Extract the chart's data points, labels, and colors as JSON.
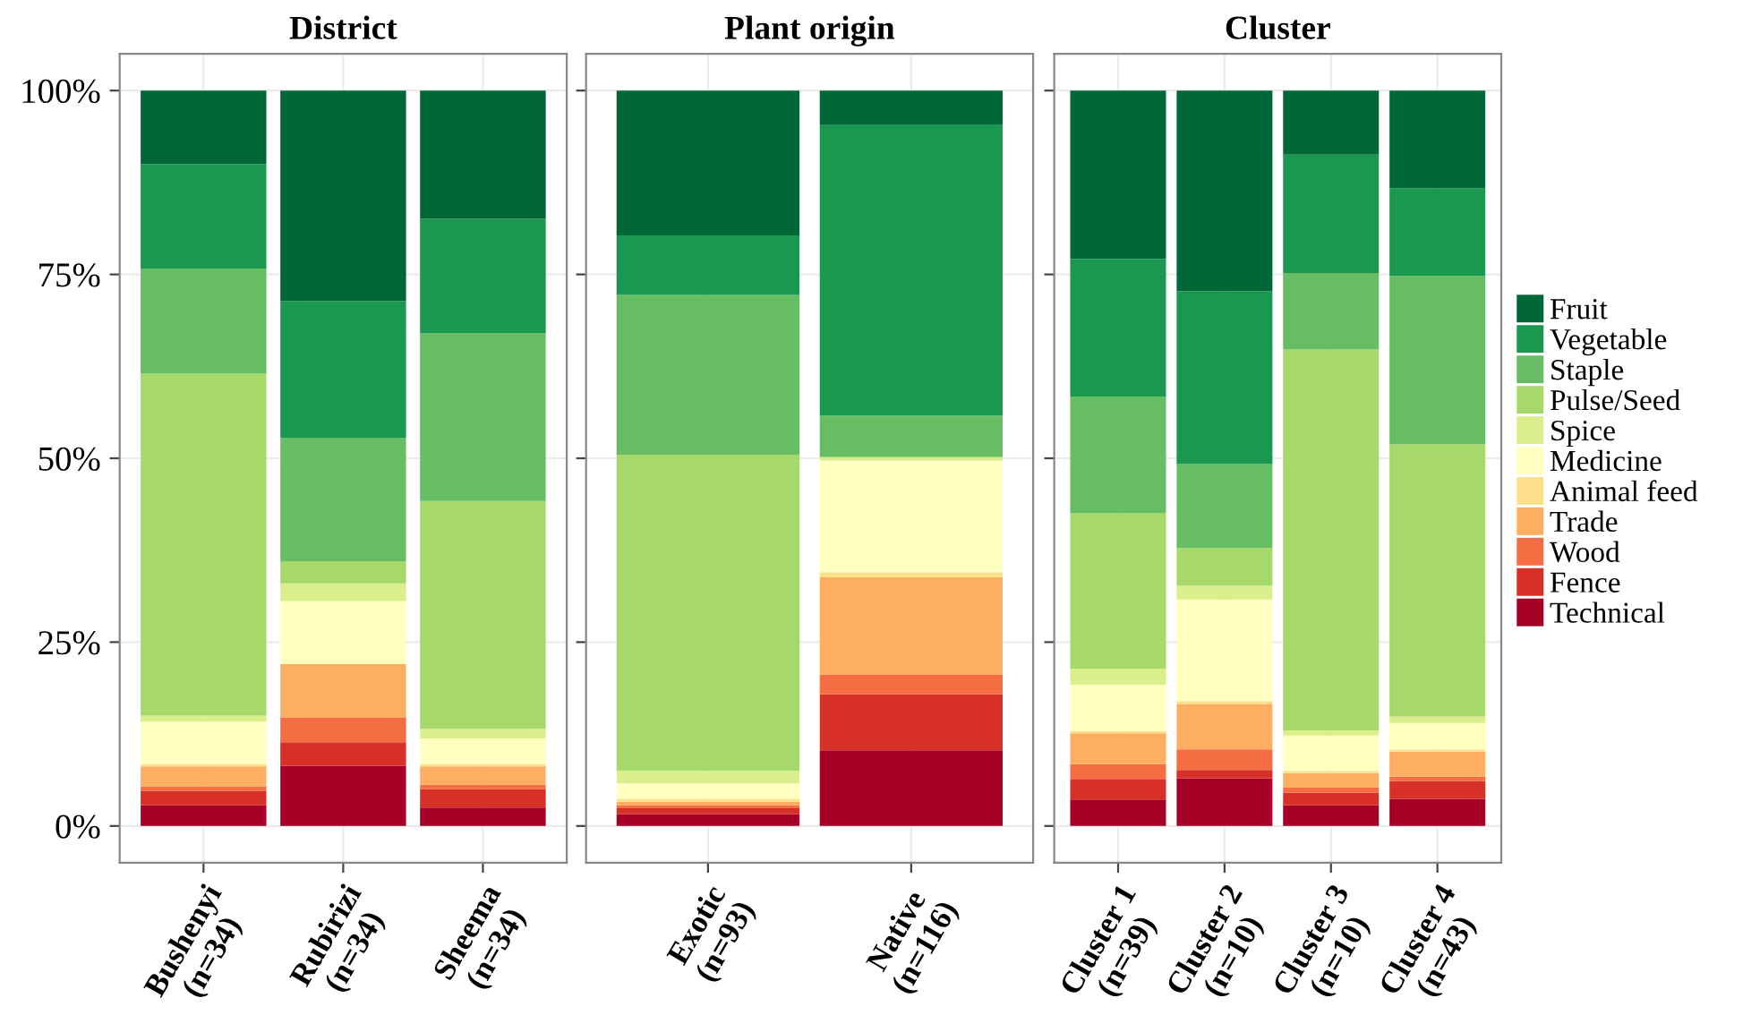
{
  "chart_data": [
    {
      "type": "bar",
      "stacked": true,
      "title": "District",
      "categories": [
        "Bushenyi\n(n=34)",
        "Rubirizi\n(n=34)",
        "Sheema\n(n=34)"
      ],
      "legend": "right",
      "ylim": [
        -5,
        105
      ],
      "yticks": [
        {
          "value": 0,
          "label": "0%"
        },
        {
          "value": 25,
          "label": "25%"
        },
        {
          "value": 50,
          "label": "50%"
        },
        {
          "value": 75,
          "label": "75%"
        },
        {
          "value": 100,
          "label": "100%"
        }
      ],
      "grid": true,
      "series": [
        {
          "name": "Technical",
          "color": "#a50026",
          "values": [
            2.8,
            8.2,
            2.5
          ]
        },
        {
          "name": "Fence",
          "color": "#d73027",
          "values": [
            2.0,
            3.2,
            2.5
          ]
        },
        {
          "name": "Wood",
          "color": "#f46d43",
          "values": [
            0.6,
            3.3,
            0.6
          ]
        },
        {
          "name": "Trade",
          "color": "#fdae61",
          "values": [
            2.7,
            7.3,
            2.5
          ]
        },
        {
          "name": "Animal feed",
          "color": "#fee08b",
          "values": [
            0.3,
            0,
            0.3
          ]
        },
        {
          "name": "Medicine",
          "color": "#ffffbf",
          "values": [
            5.8,
            8.6,
            3.5
          ]
        },
        {
          "name": "Spice",
          "color": "#d9ef8b",
          "values": [
            0.8,
            2.4,
            1.3
          ]
        },
        {
          "name": "Pulse/Seed",
          "color": "#a6d96a",
          "values": [
            46.5,
            3.0,
            31.0
          ]
        },
        {
          "name": "Staple",
          "color": "#66bd63",
          "values": [
            14.3,
            16.8,
            22.8
          ]
        },
        {
          "name": "Vegetable",
          "color": "#1a9850",
          "values": [
            14.2,
            18.6,
            15.6
          ]
        },
        {
          "name": "Fruit",
          "color": "#006837",
          "values": [
            10.0,
            28.6,
            17.4
          ]
        }
      ]
    },
    {
      "type": "bar",
      "stacked": true,
      "title": "Plant origin",
      "categories": [
        "Exotic\n(n=93)",
        "Native\n(n=116)"
      ],
      "ylim": [
        -5,
        105
      ],
      "yticks": [
        {
          "value": 0,
          "label": null
        },
        {
          "value": 25,
          "label": null
        },
        {
          "value": 50,
          "label": null
        },
        {
          "value": 75,
          "label": null
        },
        {
          "value": 100,
          "label": null
        }
      ],
      "grid": true,
      "tick_labels": "x",
      "series": [
        {
          "color": "#a50026",
          "values": [
            1.6,
            10.3
          ]
        },
        {
          "color": "#d73027",
          "values": [
            0.8,
            7.6
          ]
        },
        {
          "color": "#f46d43",
          "values": [
            0.4,
            2.7
          ]
        },
        {
          "color": "#fdae61",
          "values": [
            0.5,
            13.2
          ]
        },
        {
          "color": "#fee08b",
          "values": [
            0.4,
            0.7
          ]
        },
        {
          "color": "#ffffbf",
          "values": [
            2.1,
            15.2
          ]
        },
        {
          "color": "#d9ef8b",
          "values": [
            1.7,
            0.4
          ]
        },
        {
          "color": "#a6d96a",
          "values": [
            43.0,
            0.1
          ]
        },
        {
          "color": "#66bd63",
          "values": [
            21.7,
            5.6
          ]
        },
        {
          "color": "#1a9850",
          "values": [
            8.1,
            39.5
          ]
        },
        {
          "color": "#006837",
          "values": [
            19.7,
            4.7
          ]
        }
      ]
    },
    {
      "type": "bar",
      "stacked": true,
      "title": "Cluster",
      "categories": [
        "Cluster 1\n(n=39)",
        "Cluster 2\n(n=10)",
        "Cluster 3\n(n=10)",
        "Cluster 4\n(n=43)"
      ],
      "ylim": [
        -5,
        105
      ],
      "yticks": [
        {
          "value": 0,
          "label": null
        },
        {
          "value": 25,
          "label": null
        },
        {
          "value": 50,
          "label": null
        },
        {
          "value": 75,
          "label": null
        },
        {
          "value": 100,
          "label": null
        }
      ],
      "grid": true,
      "tick_labels": "x",
      "series": [
        {
          "color": "#a50026",
          "values": [
            3.6,
            6.5,
            2.8,
            3.7
          ]
        },
        {
          "color": "#d73027",
          "values": [
            2.8,
            1.1,
            1.7,
            2.4
          ]
        },
        {
          "color": "#f46d43",
          "values": [
            2.0,
            2.8,
            0.7,
            0.6
          ]
        },
        {
          "color": "#fdae61",
          "values": [
            4.2,
            6.2,
            2.0,
            3.4
          ]
        },
        {
          "color": "#fee08b",
          "values": [
            0.3,
            0.4,
            0.3,
            0.3
          ]
        },
        {
          "color": "#ffffbf",
          "values": [
            6.3,
            13.8,
            4.8,
            3.6
          ]
        },
        {
          "color": "#d9ef8b",
          "values": [
            2.2,
            1.9,
            0.7,
            0.9
          ]
        },
        {
          "color": "#a6d96a",
          "values": [
            21.1,
            5.1,
            51.8,
            37.0
          ]
        },
        {
          "color": "#66bd63",
          "values": [
            15.9,
            11.4,
            10.4,
            22.9
          ]
        },
        {
          "color": "#1a9850",
          "values": [
            18.7,
            23.5,
            16.1,
            11.9
          ]
        },
        {
          "color": "#006837",
          "values": [
            22.9,
            27.3,
            8.7,
            13.3
          ]
        }
      ]
    }
  ]
}
